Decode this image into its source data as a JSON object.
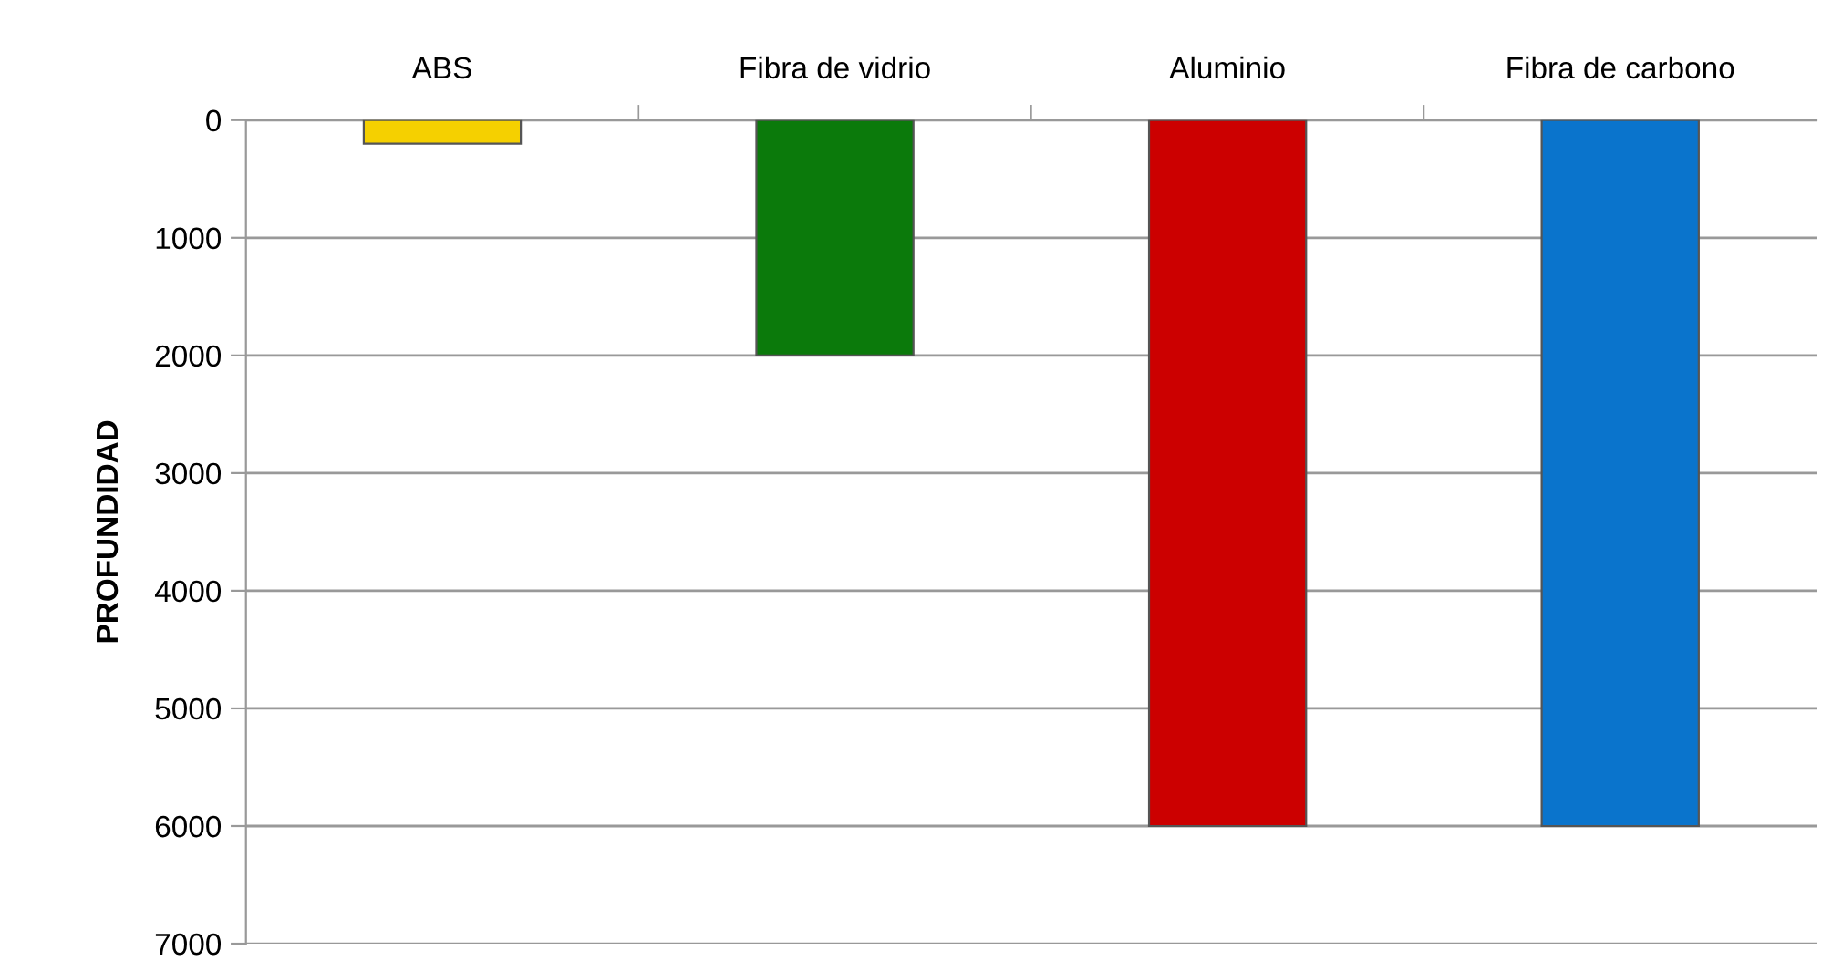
{
  "chart_data": {
    "type": "bar",
    "ylabel": "PROFUNDIDAD",
    "categories": [
      "ABS",
      "Fibra de vidrio",
      "Aluminio",
      "Fibra de carbono"
    ],
    "values": [
      200,
      2000,
      6000,
      6000
    ],
    "colors": [
      "#f5d000",
      "#0b7a0b",
      "#cc0000",
      "#0a74cc"
    ],
    "ylim": [
      7000,
      0
    ],
    "yticks": [
      0,
      1000,
      2000,
      3000,
      4000,
      5000,
      6000,
      7000
    ],
    "grid": "y",
    "legend": false
  }
}
